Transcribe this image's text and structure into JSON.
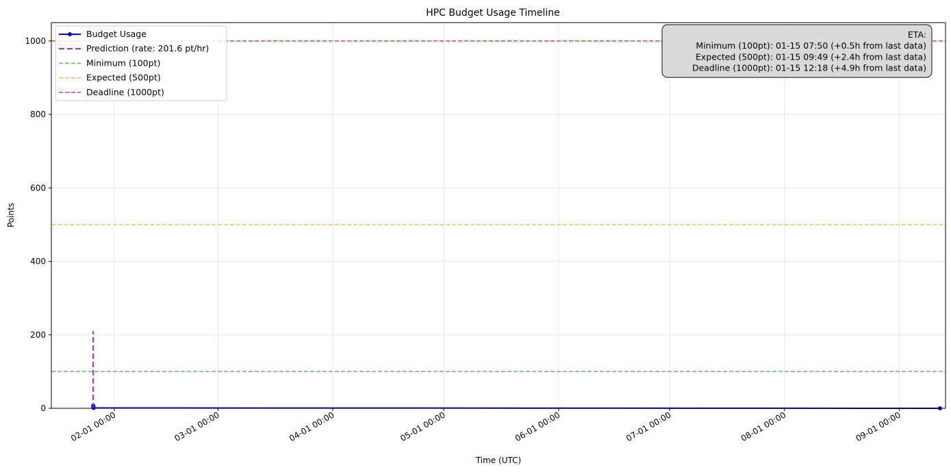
{
  "chart_data": {
    "type": "line",
    "title": "HPC Budget Usage Timeline",
    "xlabel": "Time (UTC)",
    "ylabel": "Points",
    "ylim": [
      0,
      1050
    ],
    "xlim_days": [
      0,
      241.5
    ],
    "y_ticks": [
      0,
      200,
      400,
      600,
      800,
      1000
    ],
    "x_ticks": [
      {
        "day": 17.0,
        "label": "02-01 00:00"
      },
      {
        "day": 45.0,
        "label": "03-01 00:00"
      },
      {
        "day": 76.0,
        "label": "04-01 00:00"
      },
      {
        "day": 106.0,
        "label": "05-01 00:00"
      },
      {
        "day": 137.0,
        "label": "06-01 00:00"
      },
      {
        "day": 167.0,
        "label": "07-01 00:00"
      },
      {
        "day": 198.0,
        "label": "08-01 00:00"
      },
      {
        "day": 229.0,
        "label": "09-01 00:00"
      }
    ],
    "grid": true,
    "legend_position": "top-left",
    "series": [
      {
        "name": "Budget Usage",
        "color": "#0000ff",
        "style": "solid-with-markers",
        "points": [
          {
            "day": 11.3,
            "value": 7
          },
          {
            "day": 11.35,
            "value": 3
          },
          {
            "day": 11.4,
            "value": 1
          },
          {
            "day": 240.0,
            "value": 0
          }
        ]
      },
      {
        "name": "Prediction (rate: 201.6 pt/hr)",
        "color": "#9b30a6",
        "style": "dashed",
        "points": [
          {
            "day": 11.3,
            "value": 0
          },
          {
            "day": 11.3,
            "value": 210
          }
        ]
      }
    ],
    "reference_lines": [
      {
        "name": "Minimum (100pt)",
        "value": 100,
        "color": "#2ca02c"
      },
      {
        "name": "Expected (500pt)",
        "value": 500,
        "color": "#ffa500"
      },
      {
        "name": "Deadline (1000pt)",
        "value": 1000,
        "color": "#ff0000"
      }
    ],
    "annotation": {
      "lines": [
        "ETA:",
        "Minimum (100pt): 01-15 07:50 (+0.5h from last data)",
        "Expected (500pt): 01-15 09:49 (+2.4h from last data)",
        "Deadline (1000pt): 01-15 12:18 (+4.9h from last data)"
      ]
    }
  }
}
